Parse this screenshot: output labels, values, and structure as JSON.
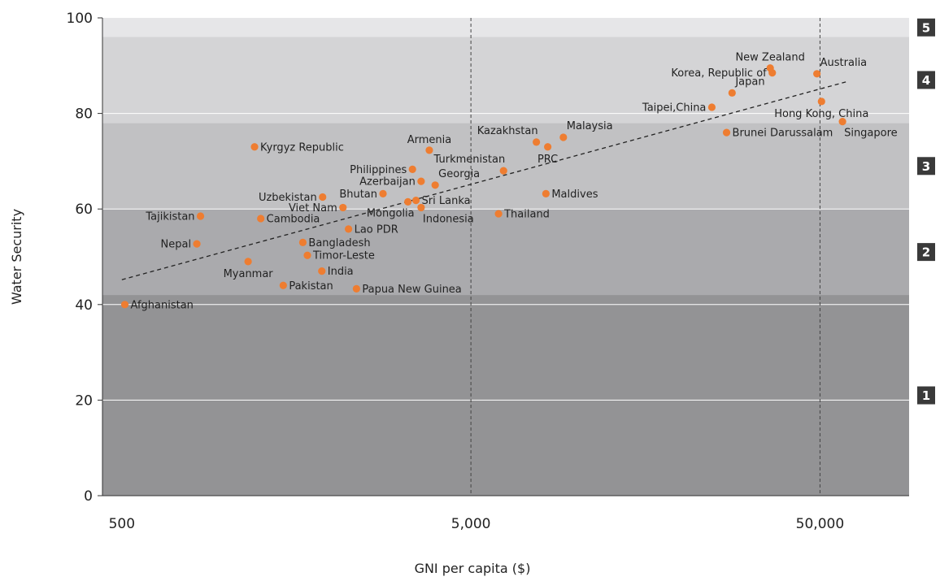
{
  "chart_data": {
    "type": "scatter",
    "xlabel": "GNI per capita ($)",
    "ylabel": "Water Security",
    "x_scale": "log",
    "xlim": [
      440,
      90000
    ],
    "ylim": [
      0,
      100
    ],
    "x_ticks": [
      {
        "value": 500,
        "label": "500"
      },
      {
        "value": 5000,
        "label": "5,000"
      },
      {
        "value": 50000,
        "label": "50,000"
      }
    ],
    "y_ticks": [
      0,
      20,
      40,
      60,
      80,
      100
    ],
    "colors": {
      "point": "#ee7d31",
      "band_1": "#939395",
      "band_2": "#aaaaad",
      "band_3": "#c1c1c3",
      "band_4": "#d4d4d6",
      "band_5": "#e6e6e8",
      "band_label_bg": "#3a3a3a",
      "trend": "#222222"
    },
    "bands": [
      {
        "label": "1",
        "from": 0,
        "to": 42
      },
      {
        "label": "2",
        "from": 42,
        "to": 60
      },
      {
        "label": "3",
        "from": 60,
        "to": 78
      },
      {
        "label": "4",
        "from": 78,
        "to": 96
      },
      {
        "label": "5",
        "from": 96,
        "to": 100
      }
    ],
    "trendline": {
      "x": [
        500,
        60000
      ],
      "y": [
        45.2,
        86.7
      ],
      "style": "dashed"
    },
    "reference_lines_x": [
      5000,
      50000
    ],
    "points": [
      {
        "name": "Afghanistan",
        "x": 510,
        "y": 40.0,
        "label_pos": "right"
      },
      {
        "name": "Nepal",
        "x": 820,
        "y": 52.7,
        "label_pos": "left"
      },
      {
        "name": "Tajikistan",
        "x": 840,
        "y": 58.5,
        "label_pos": "left"
      },
      {
        "name": "Kyrgyz Republic",
        "x": 1200,
        "y": 73.0,
        "label_pos": "right"
      },
      {
        "name": "Myanmar",
        "x": 1150,
        "y": 49.0,
        "label_pos": "below"
      },
      {
        "name": "Cambodia",
        "x": 1250,
        "y": 58.0,
        "label_pos": "right"
      },
      {
        "name": "Pakistan",
        "x": 1450,
        "y": 44.0,
        "label_pos": "right"
      },
      {
        "name": "Bangladesh",
        "x": 1650,
        "y": 53.0,
        "label_pos": "right"
      },
      {
        "name": "Timor-Leste",
        "x": 1700,
        "y": 50.3,
        "label_pos": "right"
      },
      {
        "name": "India",
        "x": 1870,
        "y": 47.0,
        "label_pos": "right"
      },
      {
        "name": "Uzbekistan",
        "x": 1880,
        "y": 62.5,
        "label_pos": "left"
      },
      {
        "name": "Viet Nam",
        "x": 2150,
        "y": 60.3,
        "label_pos": "left"
      },
      {
        "name": "Lao PDR",
        "x": 2230,
        "y": 55.8,
        "label_pos": "right"
      },
      {
        "name": "Papua New Guinea",
        "x": 2350,
        "y": 43.3,
        "label_pos": "right"
      },
      {
        "name": "Bhutan",
        "x": 2800,
        "y": 63.2,
        "label_pos": "left"
      },
      {
        "name": "Mongolia",
        "x": 3300,
        "y": 61.5,
        "label_pos": "below-left"
      },
      {
        "name": "Philippines",
        "x": 3400,
        "y": 68.3,
        "label_pos": "left"
      },
      {
        "name": "Indonesia",
        "x": 3600,
        "y": 60.3,
        "label_pos": "below-right"
      },
      {
        "name": "Azerbaijan",
        "x": 3600,
        "y": 65.8,
        "label_pos": "left"
      },
      {
        "name": "Armenia",
        "x": 3800,
        "y": 72.3,
        "label_pos": "above"
      },
      {
        "name": "Georgia",
        "x": 3950,
        "y": 65.0,
        "label_pos": "above-right"
      },
      {
        "name": "Sri Lanka",
        "x": 3480,
        "y": 61.8,
        "label_pos": "right"
      },
      {
        "name": "Thailand",
        "x": 6000,
        "y": 59.0,
        "label_pos": "right"
      },
      {
        "name": "Turkmenistan",
        "x": 6200,
        "y": 68.0,
        "label_pos": "above-left"
      },
      {
        "name": "Kazakhstan",
        "x": 7700,
        "y": 74.0,
        "label_pos": "above-left"
      },
      {
        "name": "PRC",
        "x": 8300,
        "y": 73.0,
        "label_pos": "below"
      },
      {
        "name": "Maldives",
        "x": 8200,
        "y": 63.2,
        "label_pos": "right"
      },
      {
        "name": "Malaysia",
        "x": 9200,
        "y": 75.0,
        "label_pos": "above-right"
      },
      {
        "name": "Taipei,China",
        "x": 24500,
        "y": 81.3,
        "label_pos": "left"
      },
      {
        "name": "Brunei Darussalam",
        "x": 27000,
        "y": 76.0,
        "label_pos": "right"
      },
      {
        "name": "Japan",
        "x": 28000,
        "y": 84.3,
        "label_pos": "above-right"
      },
      {
        "name": "Korea, Republic of",
        "x": 36500,
        "y": 88.5,
        "label_pos": "left"
      },
      {
        "name": "New Zealand",
        "x": 36000,
        "y": 89.5,
        "label_pos": "above"
      },
      {
        "name": "Australia",
        "x": 49000,
        "y": 88.3,
        "label_pos": "above-right"
      },
      {
        "name": "Hong Kong, China",
        "x": 50500,
        "y": 82.5,
        "label_pos": "below"
      },
      {
        "name": "Singapore",
        "x": 58000,
        "y": 78.3,
        "label_pos": "below-right"
      }
    ]
  }
}
